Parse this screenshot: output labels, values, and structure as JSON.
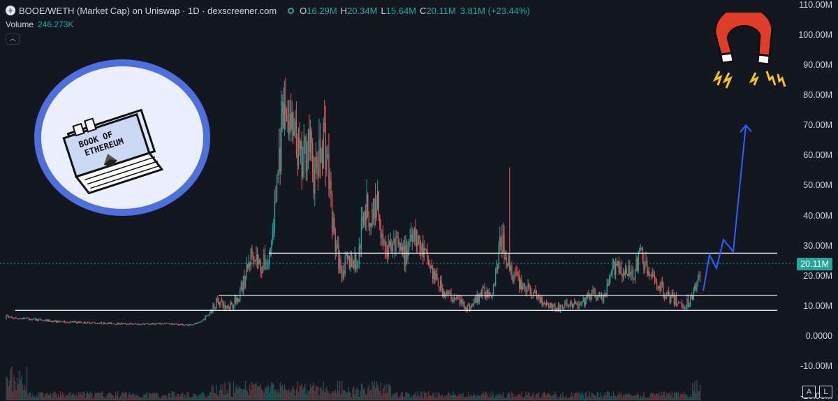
{
  "header": {
    "pair": "BOOE/WETH (Market Cap) on Uniswap · 1D · dexscreener.com",
    "o_label": "O",
    "o_value": "16.29M",
    "h_label": "H",
    "h_value": "20.34M",
    "l_label": "L",
    "l_value": "15.64M",
    "c_label": "C",
    "c_value": "20.11M",
    "change": "3.81M (+23.44%)"
  },
  "volume": {
    "label": "Volume",
    "value": "246.273K"
  },
  "buttons": {
    "collapse": "︿",
    "auto": "A",
    "log": "L"
  },
  "colors": {
    "background": "#131722",
    "up": "#26a69a",
    "down": "#ef5350",
    "arrow": "#2962ff",
    "level_lines": "#ffffff",
    "magnet": "#e03c2a"
  },
  "icons": {
    "logo": "book-of-ethereum-logo",
    "magnet": "magnet-icon"
  },
  "chart_data": {
    "type": "candlestick",
    "title": "BOOE/WETH (Market Cap) on Uniswap · 1D · dexscreener.com",
    "ylim": [
      -20000000,
      110000000
    ],
    "y_ticks": [
      "110.00M",
      "100.00M",
      "90.00M",
      "80.00M",
      "70.00M",
      "60.00M",
      "50.00M",
      "40.00M",
      "30.00M",
      "20.00M",
      "10.00M",
      "0.0000",
      "-10.00M",
      "-20.00M"
    ],
    "last_price": "20.11M",
    "last_value": 20110000,
    "keyframes": [
      [
        0,
        5500000
      ],
      [
        4,
        7800000
      ],
      [
        8,
        8000000
      ],
      [
        12,
        6000000
      ],
      [
        40,
        5700000
      ],
      [
        80,
        4800000
      ],
      [
        140,
        4300000
      ],
      [
        200,
        3900000
      ],
      [
        240,
        4100000
      ],
      [
        268,
        3600000
      ],
      [
        285,
        4200000
      ],
      [
        300,
        7500000
      ],
      [
        312,
        12000000
      ],
      [
        322,
        9500000
      ],
      [
        338,
        11500000
      ],
      [
        352,
        20000000
      ],
      [
        362,
        29000000
      ],
      [
        372,
        23000000
      ],
      [
        385,
        25000000
      ],
      [
        393,
        40000000
      ],
      [
        399,
        58000000
      ],
      [
        405,
        70000000
      ],
      [
        411,
        75000000
      ],
      [
        419,
        66000000
      ],
      [
        427,
        60000000
      ],
      [
        433,
        55000000
      ],
      [
        441,
        67000000
      ],
      [
        450,
        52000000
      ],
      [
        457,
        58000000
      ],
      [
        464,
        68000000
      ],
      [
        470,
        55000000
      ],
      [
        478,
        33000000
      ],
      [
        488,
        22000000
      ],
      [
        500,
        25000000
      ],
      [
        512,
        24000000
      ],
      [
        522,
        44000000
      ],
      [
        530,
        38000000
      ],
      [
        540,
        45000000
      ],
      [
        552,
        28000000
      ],
      [
        566,
        30000000
      ],
      [
        580,
        26000000
      ],
      [
        592,
        37000000
      ],
      [
        600,
        30000000
      ],
      [
        612,
        25000000
      ],
      [
        625,
        18000000
      ],
      [
        638,
        14000000
      ],
      [
        655,
        12000000
      ],
      [
        672,
        9000000
      ],
      [
        688,
        14000000
      ],
      [
        705,
        15000000
      ],
      [
        718,
        32000000
      ],
      [
        724,
        27000000
      ],
      [
        735,
        20000000
      ],
      [
        748,
        17000000
      ],
      [
        762,
        14000000
      ],
      [
        778,
        11500000
      ],
      [
        798,
        9000000
      ],
      [
        815,
        10500000
      ],
      [
        830,
        10000000
      ],
      [
        848,
        14000000
      ],
      [
        865,
        12000000
      ],
      [
        882,
        25000000
      ],
      [
        895,
        20000000
      ],
      [
        910,
        22000000
      ],
      [
        918,
        28000000
      ],
      [
        928,
        20000000
      ],
      [
        940,
        18000000
      ],
      [
        955,
        13500000
      ],
      [
        965,
        12000000
      ],
      [
        978,
        10000000
      ],
      [
        990,
        12000000
      ],
      [
        1000,
        19000000
      ],
      [
        1004,
        20110000
      ]
    ],
    "spikes": [
      [
        391,
        35000000
      ],
      [
        409,
        82000000
      ],
      [
        464,
        70000000
      ],
      [
        730,
        56000000
      ],
      [
        719,
        37000000
      ],
      [
        918,
        30000000
      ]
    ],
    "horizontal_levels": [
      27500000,
      13500000,
      8500000
    ],
    "projected_path": [
      [
        1007,
        15000000
      ],
      [
        1016,
        27000000
      ],
      [
        1026,
        22500000
      ],
      [
        1036,
        32000000
      ],
      [
        1050,
        28000000
      ],
      [
        1068,
        70000000
      ]
    ]
  }
}
